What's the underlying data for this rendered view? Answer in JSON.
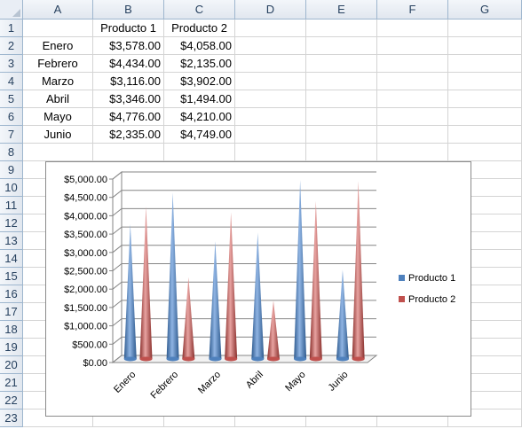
{
  "sheet": {
    "columns": [
      "A",
      "B",
      "C",
      "D",
      "E",
      "F",
      "G"
    ],
    "rows": [
      "1",
      "2",
      "3",
      "4",
      "5",
      "6",
      "7",
      "8",
      "9",
      "10",
      "11",
      "12",
      "13",
      "14",
      "15",
      "16",
      "17",
      "18",
      "19",
      "20",
      "21",
      "22",
      "23"
    ],
    "table": {
      "headers": [
        "",
        "Producto 1",
        "Producto 2"
      ],
      "data": [
        [
          "Enero",
          "$3,578.00",
          "$4,058.00"
        ],
        [
          "Febrero",
          "$4,434.00",
          "$2,135.00"
        ],
        [
          "Marzo",
          "$3,116.00",
          "$3,902.00"
        ],
        [
          "Abril",
          "$3,346.00",
          "$1,494.00"
        ],
        [
          "Mayo",
          "$4,776.00",
          "$4,210.00"
        ],
        [
          "Junio",
          "$2,335.00",
          "$4,749.00"
        ]
      ]
    }
  },
  "chart_data": {
    "type": "bar",
    "style": "3d-cone",
    "categories": [
      "Enero",
      "Febrero",
      "Marzo",
      "Abril",
      "Mayo",
      "Junio"
    ],
    "series": [
      {
        "name": "Producto 1",
        "values": [
          3578,
          4434,
          3116,
          3346,
          4776,
          2335
        ],
        "color": "#4f81bd"
      },
      {
        "name": "Producto 2",
        "values": [
          4058,
          2135,
          3902,
          1494,
          4210,
          4749
        ],
        "color": "#c0504d"
      }
    ],
    "yticks": [
      "$0.00",
      "$500.00",
      "$1,000.00",
      "$1,500.00",
      "$2,000.00",
      "$2,500.00",
      "$3,000.00",
      "$3,500.00",
      "$4,000.00",
      "$4,500.00",
      "$5,000.00"
    ],
    "ylim": [
      0,
      5000
    ],
    "legend": "right",
    "grid": true
  }
}
